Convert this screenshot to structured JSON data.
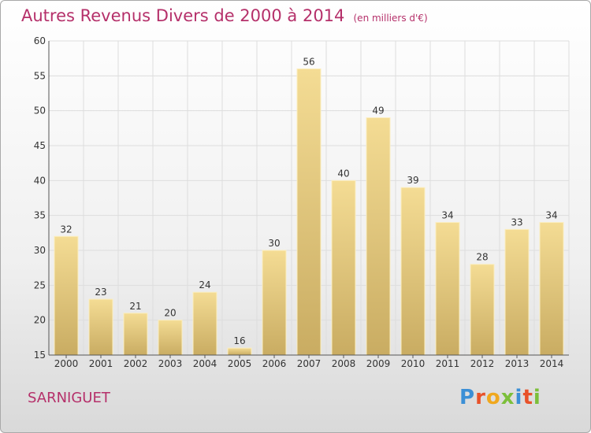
{
  "title": "Autres Revenus Divers de 2000 à 2014",
  "unit_note": "(en milliers d'€)",
  "commune": "SARNIGUET",
  "logo": {
    "text": "Proxiti",
    "colors": [
      "#3b8fd6",
      "#e8522a",
      "#f0a81e",
      "#7cbf3a",
      "#3b8fd6",
      "#e8522a",
      "#7cbf3a"
    ]
  },
  "colors": {
    "title": "#b5306a",
    "bar_light": "#f4dc94",
    "bar_dark": "#c9ac62",
    "grid": "#dddddd"
  },
  "chart_data": {
    "type": "bar",
    "title": "Autres Revenus Divers de 2000 à 2014",
    "subtitle": "(en milliers d'€)",
    "xlabel": "",
    "ylabel": "",
    "categories": [
      "2000",
      "2001",
      "2002",
      "2003",
      "2004",
      "2005",
      "2006",
      "2007",
      "2008",
      "2009",
      "2010",
      "2011",
      "2012",
      "2013",
      "2014"
    ],
    "values": [
      32,
      23,
      21,
      20,
      24,
      16,
      30,
      56,
      40,
      49,
      39,
      34,
      28,
      33,
      34
    ],
    "ylim": [
      15,
      60
    ],
    "yticks": [
      15,
      20,
      25,
      30,
      35,
      40,
      45,
      50,
      55,
      60
    ],
    "grid": true
  }
}
